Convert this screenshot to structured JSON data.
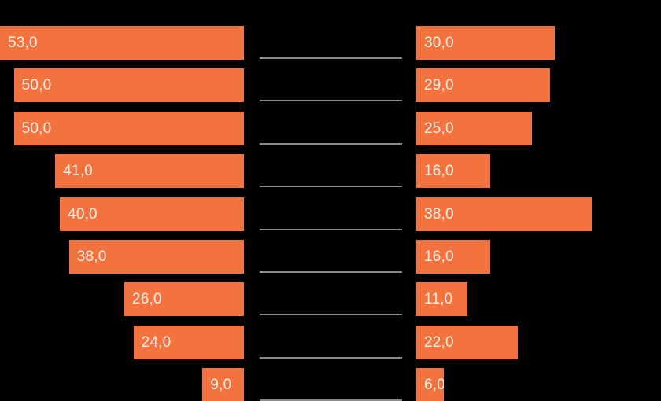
{
  "chart_data": {
    "type": "bar",
    "variant": "paired-horizontal",
    "title": "",
    "xlabel": "",
    "ylabel": "",
    "axis_max": 53,
    "xlim_left": [
      0,
      53
    ],
    "xlim_right": [
      0,
      53
    ],
    "grid": false,
    "legend": false,
    "decimal_format": "comma",
    "background": "#000000",
    "bar_color": "#F3733F",
    "value_label_color": "#F7F1E9",
    "separator_color": "#8A8A8A",
    "series": [
      {
        "name": "left",
        "alignment": "right-aligned-bars",
        "values": [
          53.0,
          50.0,
          50.0,
          41.0,
          40.0,
          38.0,
          26.0,
          24.0,
          9.0
        ],
        "labels": [
          "53,0",
          "50,0",
          "50,0",
          "41,0",
          "40,0",
          "38,0",
          "26,0",
          "24,0",
          "9,0"
        ]
      },
      {
        "name": "right",
        "alignment": "left-aligned-bars",
        "values": [
          30.0,
          29.0,
          25.0,
          16.0,
          38.0,
          16.0,
          11.0,
          22.0,
          6.0
        ],
        "labels": [
          "30,0",
          "29,0",
          "25,0",
          "16,0",
          "38,0",
          "16,0",
          "11,0",
          "22,0",
          "6,0"
        ]
      }
    ]
  }
}
